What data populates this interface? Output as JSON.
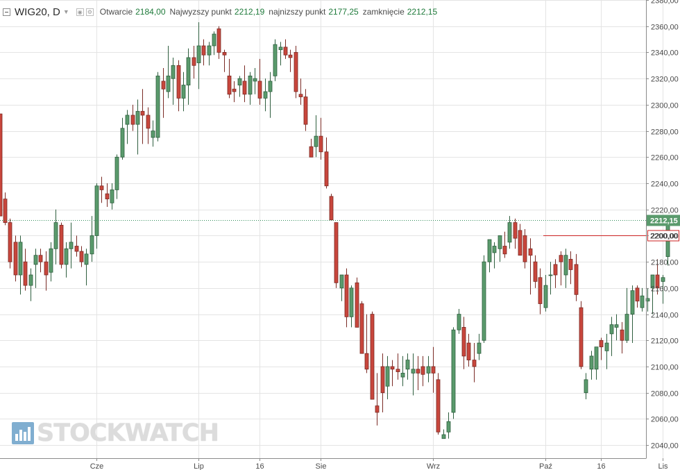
{
  "header": {
    "symbol": "WIG20, D",
    "open_label": "Otwarcie",
    "open_value": "2184,00",
    "high_label": "Najwyzszy punkt",
    "high_value": "2212,19",
    "low_label": "najnizszy punkt",
    "low_value": "2177,25",
    "close_label": "zamknięcie",
    "close_value": "2212,15"
  },
  "watermark": "STOCKWATCH",
  "colors": {
    "up": "#5a9a6c",
    "down": "#c8463c",
    "up_edge": "#2e5e3e",
    "down_edge": "#7a2a24",
    "grid": "#e4e4e4",
    "price_line": "#2e8b57",
    "level_line": "#cc2222"
  },
  "chart_data": {
    "type": "candlestick",
    "title": "WIG20, D",
    "ylim": [
      2030,
      2380
    ],
    "y_ticks": [
      "2040,00",
      "2060,00",
      "2080,00",
      "2100,00",
      "2120,00",
      "2140,00",
      "2160,00",
      "2180,00",
      "2200,00",
      "2220,00",
      "2240,00",
      "2260,00",
      "2280,00",
      "2300,00",
      "2320,00",
      "2340,00",
      "2360,00",
      "2380,00"
    ],
    "x_ticks": [
      {
        "label": "Cze",
        "bar": 19
      },
      {
        "label": "Lip",
        "bar": 39
      },
      {
        "label": "16",
        "bar": 51
      },
      {
        "label": "Sie",
        "bar": 63
      },
      {
        "label": "Wrz",
        "bar": 85
      },
      {
        "label": "Paź",
        "bar": 107
      },
      {
        "label": "16",
        "bar": 118
      },
      {
        "label": "Lis",
        "bar": 130
      }
    ],
    "last_price": "2212,15",
    "marked_level": "2200,00",
    "candles": [
      [
        2293,
        2293,
        2215,
        2215
      ],
      [
        2228,
        2233,
        2208,
        2210
      ],
      [
        2210,
        2213,
        2175,
        2180
      ],
      [
        2195,
        2200,
        2165,
        2170
      ],
      [
        2170,
        2200,
        2155,
        2195
      ],
      [
        2180,
        2190,
        2158,
        2162
      ],
      [
        2162,
        2175,
        2150,
        2170
      ],
      [
        2178,
        2190,
        2160,
        2185
      ],
      [
        2185,
        2190,
        2172,
        2180
      ],
      [
        2180,
        2188,
        2158,
        2170
      ],
      [
        2172,
        2195,
        2165,
        2190
      ],
      [
        2190,
        2220,
        2178,
        2210
      ],
      [
        2208,
        2210,
        2175,
        2178
      ],
      [
        2178,
        2195,
        2168,
        2190
      ],
      [
        2190,
        2210,
        2175,
        2195
      ],
      [
        2192,
        2200,
        2184,
        2188
      ],
      [
        2188,
        2192,
        2176,
        2180
      ],
      [
        2178,
        2190,
        2162,
        2186
      ],
      [
        2186,
        2215,
        2180,
        2200
      ],
      [
        2200,
        2240,
        2190,
        2238
      ],
      [
        2238,
        2245,
        2225,
        2235
      ],
      [
        2232,
        2240,
        2222,
        2228
      ],
      [
        2225,
        2240,
        2220,
        2235
      ],
      [
        2235,
        2262,
        2228,
        2260
      ],
      [
        2260,
        2290,
        2258,
        2282
      ],
      [
        2285,
        2296,
        2270,
        2292
      ],
      [
        2292,
        2300,
        2280,
        2285
      ],
      [
        2285,
        2304,
        2262,
        2295
      ],
      [
        2295,
        2312,
        2270,
        2292
      ],
      [
        2292,
        2298,
        2270,
        2282
      ],
      [
        2275,
        2288,
        2268,
        2280
      ],
      [
        2275,
        2325,
        2272,
        2322
      ],
      [
        2318,
        2328,
        2290,
        2312
      ],
      [
        2310,
        2345,
        2305,
        2322
      ],
      [
        2320,
        2336,
        2300,
        2330
      ],
      [
        2330,
        2334,
        2295,
        2305
      ],
      [
        2305,
        2325,
        2295,
        2315
      ],
      [
        2315,
        2343,
        2300,
        2336
      ],
      [
        2336,
        2345,
        2320,
        2330
      ],
      [
        2332,
        2363,
        2312,
        2345
      ],
      [
        2345,
        2350,
        2330,
        2338
      ],
      [
        2338,
        2348,
        2330,
        2345
      ],
      [
        2345,
        2356,
        2338,
        2354
      ],
      [
        2358,
        2360,
        2335,
        2340
      ],
      [
        2340,
        2342,
        2325,
        2338
      ],
      [
        2322,
        2335,
        2305,
        2308
      ],
      [
        2312,
        2318,
        2302,
        2310
      ],
      [
        2315,
        2322,
        2306,
        2320
      ],
      [
        2318,
        2330,
        2302,
        2308
      ],
      [
        2308,
        2325,
        2300,
        2322
      ],
      [
        2318,
        2328,
        2308,
        2320
      ],
      [
        2318,
        2335,
        2300,
        2305
      ],
      [
        2305,
        2320,
        2295,
        2310
      ],
      [
        2310,
        2325,
        2290,
        2318
      ],
      [
        2322,
        2350,
        2318,
        2346
      ],
      [
        2342,
        2348,
        2330,
        2344
      ],
      [
        2344,
        2350,
        2335,
        2338
      ],
      [
        2338,
        2342,
        2325,
        2336
      ],
      [
        2340,
        2345,
        2305,
        2310
      ],
      [
        2308,
        2320,
        2300,
        2306
      ],
      [
        2306,
        2312,
        2280,
        2285
      ],
      [
        2268,
        2274,
        2260,
        2260
      ],
      [
        2268,
        2292,
        2260,
        2276
      ],
      [
        2276,
        2290,
        2258,
        2264
      ],
      [
        2264,
        2275,
        2236,
        2238
      ],
      [
        2230,
        2232,
        2212,
        2212
      ],
      [
        2210,
        2210,
        2160,
        2164
      ],
      [
        2160,
        2170,
        2150,
        2170
      ],
      [
        2170,
        2175,
        2130,
        2138
      ],
      [
        2138,
        2162,
        2130,
        2160
      ],
      [
        2164,
        2168,
        2130,
        2130
      ],
      [
        2148,
        2150,
        2112,
        2110
      ],
      [
        2110,
        2140,
        2095,
        2098
      ],
      [
        2140,
        2142,
        2075,
        2075
      ],
      [
        2070,
        2095,
        2055,
        2065
      ],
      [
        2100,
        2110,
        2065,
        2080
      ],
      [
        2085,
        2108,
        2075,
        2100
      ],
      [
        2100,
        2105,
        2085,
        2098
      ],
      [
        2098,
        2110,
        2090,
        2096
      ],
      [
        2092,
        2108,
        2085,
        2095
      ],
      [
        2098,
        2110,
        2090,
        2105
      ],
      [
        2095,
        2110,
        2078,
        2098
      ],
      [
        2098,
        2108,
        2082,
        2095
      ],
      [
        2100,
        2108,
        2085,
        2094
      ],
      [
        2095,
        2108,
        2088,
        2100
      ],
      [
        2100,
        2115,
        2080,
        2095
      ],
      [
        2090,
        2095,
        2048,
        2050
      ],
      [
        2045,
        2052,
        2045,
        2048
      ],
      [
        2050,
        2065,
        2045,
        2058
      ],
      [
        2065,
        2130,
        2060,
        2128
      ],
      [
        2128,
        2144,
        2125,
        2140
      ],
      [
        2130,
        2138,
        2098,
        2108
      ],
      [
        2118,
        2125,
        2100,
        2105
      ],
      [
        2105,
        2118,
        2088,
        2100
      ],
      [
        2110,
        2125,
        2105,
        2118
      ],
      [
        2120,
        2185,
        2118,
        2180
      ],
      [
        2180,
        2197,
        2172,
        2197
      ],
      [
        2187,
        2195,
        2175,
        2192
      ],
      [
        2190,
        2200,
        2180,
        2200
      ],
      [
        2192,
        2203,
        2183,
        2186
      ],
      [
        2195,
        2215,
        2190,
        2210
      ],
      [
        2210,
        2213,
        2190,
        2198
      ],
      [
        2204,
        2209,
        2185,
        2185
      ],
      [
        2200,
        2205,
        2175,
        2180
      ],
      [
        2190,
        2198,
        2155,
        2185
      ],
      [
        2180,
        2185,
        2160,
        2165
      ],
      [
        2168,
        2175,
        2140,
        2148
      ],
      [
        2145,
        2170,
        2142,
        2162
      ],
      [
        2170,
        2180,
        2155,
        2170
      ],
      [
        2178,
        2182,
        2160,
        2170
      ],
      [
        2185,
        2188,
        2162,
        2180
      ],
      [
        2170,
        2190,
        2160,
        2185
      ],
      [
        2182,
        2188,
        2163,
        2174
      ],
      [
        2178,
        2186,
        2150,
        2155
      ],
      [
        2145,
        2150,
        2098,
        2100
      ],
      [
        2080,
        2095,
        2075,
        2090
      ],
      [
        2098,
        2112,
        2090,
        2108
      ],
      [
        2098,
        2115,
        2090,
        2115
      ],
      [
        2120,
        2122,
        2105,
        2115
      ],
      [
        2112,
        2125,
        2098,
        2118
      ],
      [
        2125,
        2138,
        2108,
        2132
      ],
      [
        2130,
        2140,
        2120,
        2132
      ],
      [
        2128,
        2134,
        2110,
        2120
      ],
      [
        2120,
        2160,
        2118,
        2140
      ],
      [
        2140,
        2162,
        2118,
        2158
      ],
      [
        2160,
        2162,
        2145,
        2150
      ],
      [
        2145,
        2160,
        2142,
        2154
      ],
      [
        2150,
        2160,
        2142,
        2152
      ],
      [
        2160,
        2170,
        2140,
        2170
      ],
      [
        2170,
        2182,
        2155,
        2160
      ],
      [
        2165,
        2170,
        2148,
        2168
      ],
      [
        2184,
        2212.19,
        2177.25,
        2212.15
      ]
    ]
  }
}
